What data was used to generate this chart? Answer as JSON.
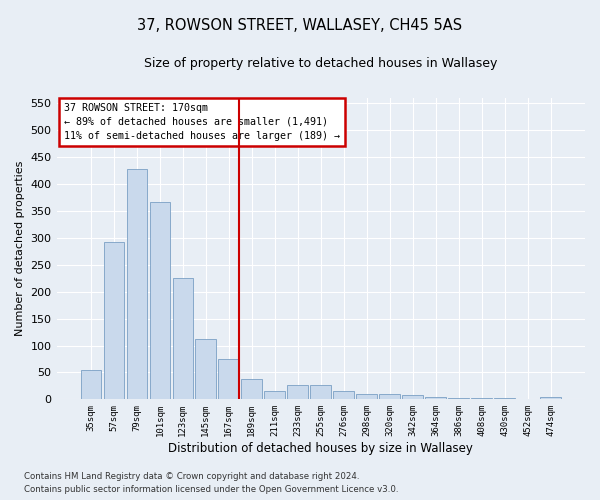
{
  "title": "37, ROWSON STREET, WALLASEY, CH45 5AS",
  "subtitle": "Size of property relative to detached houses in Wallasey",
  "xlabel": "Distribution of detached houses by size in Wallasey",
  "ylabel": "Number of detached properties",
  "footer_line1": "Contains HM Land Registry data © Crown copyright and database right 2024.",
  "footer_line2": "Contains public sector information licensed under the Open Government Licence v3.0.",
  "categories": [
    "35sqm",
    "57sqm",
    "79sqm",
    "101sqm",
    "123sqm",
    "145sqm",
    "167sqm",
    "189sqm",
    "211sqm",
    "233sqm",
    "255sqm",
    "276sqm",
    "298sqm",
    "320sqm",
    "342sqm",
    "364sqm",
    "386sqm",
    "408sqm",
    "430sqm",
    "452sqm",
    "474sqm"
  ],
  "values": [
    55,
    293,
    428,
    366,
    225,
    113,
    75,
    38,
    15,
    27,
    27,
    15,
    10,
    10,
    8,
    4,
    3,
    3,
    3,
    1,
    4
  ],
  "bar_color": "#c9d9ec",
  "bar_edge_color": "#7aa0c4",
  "vline_index": 6,
  "vline_color": "#cc0000",
  "annotation_line1": "37 ROWSON STREET: 170sqm",
  "annotation_line2": "← 89% of detached houses are smaller (1,491)",
  "annotation_line3": "11% of semi-detached houses are larger (189) →",
  "annotation_box_color": "#cc0000",
  "ylim": [
    0,
    560
  ],
  "yticks": [
    0,
    50,
    100,
    150,
    200,
    250,
    300,
    350,
    400,
    450,
    500,
    550
  ],
  "bg_color": "#e8eef5",
  "plot_bg_color": "#e8eef5",
  "grid_color": "#ffffff"
}
